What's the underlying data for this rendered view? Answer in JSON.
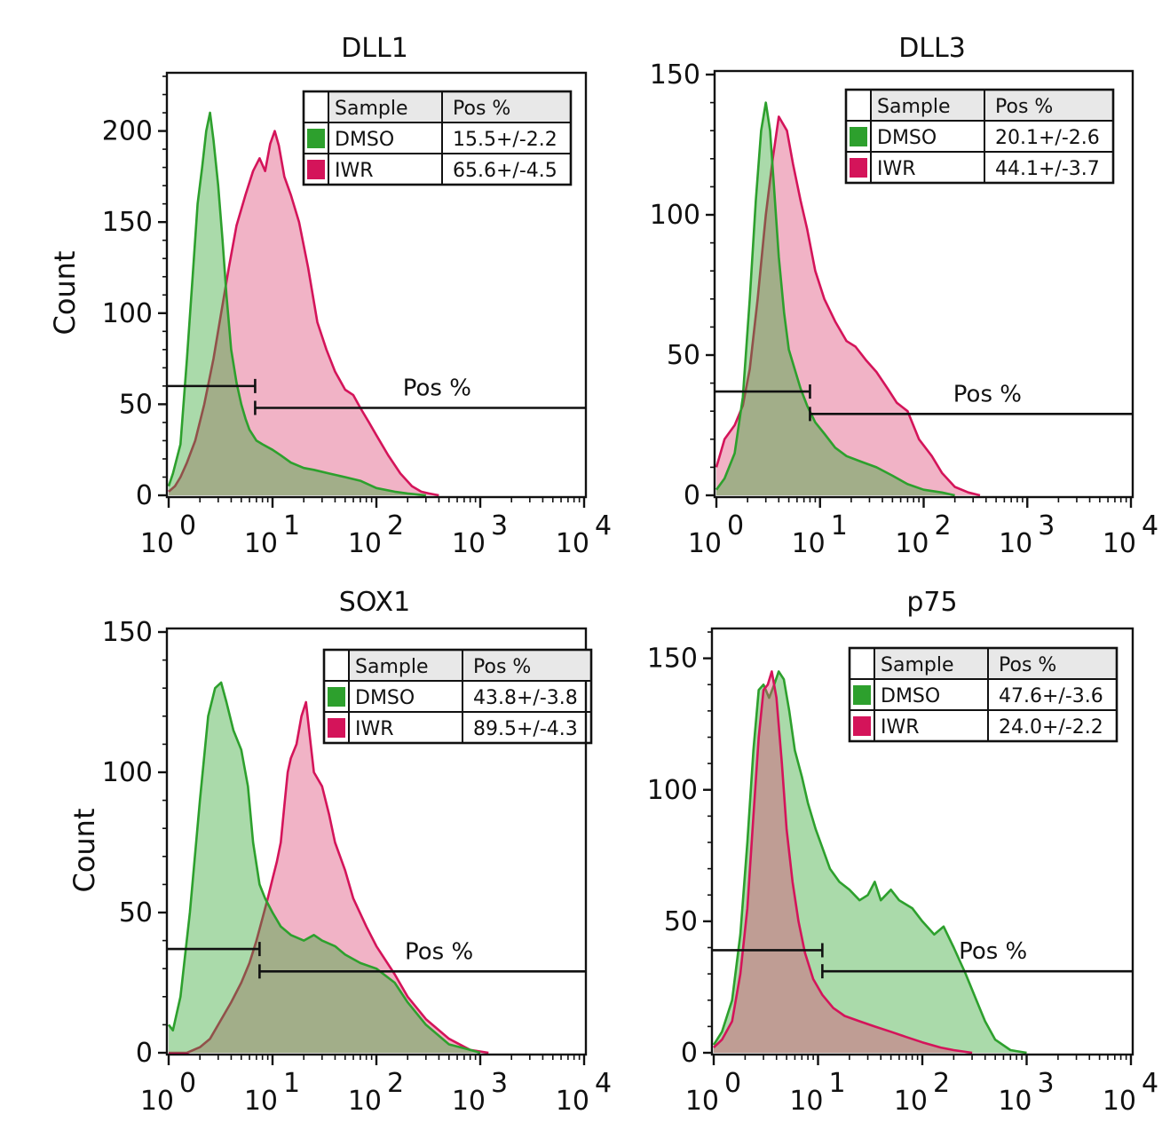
{
  "colors": {
    "dmso": "#2da02d",
    "iwr": "#d4145a",
    "dmso_fill": "#35a835",
    "iwr_fill": "#dd4a78"
  },
  "legend_headers": {
    "sample": "Sample",
    "pos": "Pos %"
  },
  "chart_data": [
    {
      "type": "area",
      "title": "DLL1",
      "xscale": "log",
      "xlim": [
        1,
        10000
      ],
      "ylim": [
        0,
        230
      ],
      "ylabel": "Count",
      "yticks": [
        "0",
        "50",
        "100",
        "150",
        "200"
      ],
      "ytick_values": [
        0,
        50,
        100,
        150,
        200
      ],
      "xtick_base": [
        "10",
        "10",
        "10",
        "10",
        "10"
      ],
      "xtick_exp": [
        "0",
        "1",
        "2",
        "3",
        "4"
      ],
      "gate": {
        "label": "Pos %",
        "threshold": 6.8,
        "neg_count": 60,
        "pos_count": 48
      },
      "legend": [
        {
          "sample": "DMSO",
          "pos": "15.5+/-2.2",
          "color_key": "dmso"
        },
        {
          "sample": "IWR",
          "pos": "65.6+/-4.5",
          "color_key": "iwr"
        }
      ],
      "series": [
        {
          "name": "IWR",
          "color_key": "iwr",
          "x": [
            1,
            1.15,
            1.3,
            1.5,
            1.8,
            2.2,
            2.7,
            3.2,
            3.8,
            4.5,
            5.5,
            6.5,
            7.5,
            8.5,
            9.5,
            10.5,
            11.5,
            13,
            15,
            18,
            22,
            27,
            33,
            40,
            50,
            60,
            70,
            85,
            100,
            130,
            170,
            220,
            270,
            320,
            400
          ],
          "values": [
            2,
            5,
            10,
            18,
            30,
            50,
            75,
            100,
            125,
            148,
            165,
            178,
            185,
            178,
            193,
            200,
            192,
            175,
            165,
            150,
            125,
            95,
            80,
            68,
            58,
            55,
            48,
            40,
            33,
            22,
            12,
            5,
            2,
            1,
            0
          ]
        },
        {
          "name": "DMSO",
          "color_key": "dmso",
          "x": [
            1,
            1.1,
            1.3,
            1.5,
            1.7,
            1.9,
            2.1,
            2.3,
            2.5,
            2.7,
            3.0,
            3.3,
            3.6,
            4.0,
            4.5,
            5.0,
            5.5,
            6.0,
            7.0,
            8.0,
            10,
            12,
            15,
            20,
            25,
            35,
            50,
            70,
            100,
            150,
            200,
            300
          ],
          "values": [
            5,
            12,
            28,
            75,
            120,
            160,
            180,
            200,
            210,
            195,
            170,
            140,
            110,
            80,
            62,
            50,
            42,
            36,
            30,
            28,
            25,
            22,
            18,
            15,
            14,
            12,
            10,
            8,
            4,
            2,
            1,
            0
          ]
        }
      ]
    },
    {
      "type": "area",
      "title": "DLL3",
      "xscale": "log",
      "xlim": [
        1,
        10000
      ],
      "ylim": [
        0,
        150
      ],
      "ylabel": "",
      "yticks": [
        "0",
        "50",
        "100",
        "150"
      ],
      "ytick_values": [
        0,
        50,
        100,
        150
      ],
      "xtick_base": [
        "10",
        "10",
        "10",
        "10",
        "10"
      ],
      "xtick_exp": [
        "0",
        "1",
        "2",
        "3",
        "4"
      ],
      "gate": {
        "label": "Pos %",
        "threshold": 8,
        "neg_count": 37,
        "pos_count": 29
      },
      "legend": [
        {
          "sample": "DMSO",
          "pos": "20.1+/-2.6",
          "color_key": "dmso"
        },
        {
          "sample": "IWR",
          "pos": "44.1+/-3.7",
          "color_key": "iwr"
        }
      ],
      "series": [
        {
          "name": "IWR",
          "color_key": "iwr",
          "x": [
            1,
            1.2,
            1.5,
            1.8,
            2.1,
            2.5,
            3.0,
            3.5,
            4.0,
            4.8,
            5.5,
            6.5,
            7.5,
            9,
            11,
            14,
            18,
            22,
            28,
            35,
            45,
            55,
            70,
            90,
            120,
            150,
            200,
            270,
            350
          ],
          "values": [
            10,
            20,
            25,
            32,
            45,
            70,
            100,
            120,
            135,
            130,
            118,
            105,
            95,
            80,
            70,
            62,
            55,
            53,
            48,
            44,
            38,
            33,
            30,
            20,
            14,
            8,
            3,
            1,
            0
          ]
        },
        {
          "name": "DMSO",
          "color_key": "dmso",
          "x": [
            1,
            1.2,
            1.5,
            1.8,
            2.1,
            2.4,
            2.7,
            3.0,
            3.3,
            3.6,
            4.0,
            4.5,
            5.0,
            5.7,
            6.5,
            7.5,
            9,
            11,
            14,
            18,
            25,
            35,
            50,
            70,
            100,
            150,
            200
          ],
          "values": [
            2,
            6,
            15,
            35,
            70,
            105,
            130,
            140,
            130,
            110,
            85,
            65,
            52,
            45,
            38,
            32,
            26,
            22,
            17,
            14,
            12,
            10,
            7,
            4,
            2,
            1,
            0
          ]
        }
      ]
    },
    {
      "type": "area",
      "title": "SOX1",
      "xscale": "log",
      "xlim": [
        1,
        10000
      ],
      "ylim": [
        0,
        150
      ],
      "ylabel": "Count",
      "yticks": [
        "0",
        "50",
        "100",
        "150"
      ],
      "ytick_values": [
        0,
        50,
        100,
        150
      ],
      "xtick_base": [
        "10",
        "10",
        "10",
        "10",
        "10"
      ],
      "xtick_exp": [
        "0",
        "1",
        "2",
        "3",
        "4"
      ],
      "gate": {
        "label": "Pos %",
        "threshold": 7.5,
        "neg_count": 37,
        "pos_count": 29
      },
      "legend": [
        {
          "sample": "DMSO",
          "pos": "43.8+/-3.8",
          "color_key": "dmso"
        },
        {
          "sample": "IWR",
          "pos": "89.5+/-4.3",
          "color_key": "iwr"
        }
      ],
      "series": [
        {
          "name": "IWR",
          "color_key": "iwr",
          "x": [
            1,
            1.5,
            2.0,
            2.5,
            3.0,
            4.0,
            5.0,
            6.0,
            7.0,
            8.0,
            9.0,
            10,
            11,
            12,
            13,
            14,
            15,
            17,
            19,
            21,
            23,
            25,
            30,
            35,
            40,
            50,
            60,
            80,
            100,
            150,
            200,
            300,
            500,
            800,
            1200
          ],
          "values": [
            0,
            0,
            2,
            5,
            10,
            18,
            25,
            32,
            40,
            48,
            55,
            62,
            68,
            75,
            88,
            100,
            105,
            110,
            120,
            125,
            112,
            100,
            95,
            85,
            75,
            65,
            55,
            45,
            38,
            28,
            20,
            12,
            5,
            1,
            0
          ]
        },
        {
          "name": "DMSO",
          "color_key": "dmso",
          "x": [
            1,
            1.1,
            1.3,
            1.6,
            2.0,
            2.4,
            2.8,
            3.2,
            3.6,
            4.2,
            5.0,
            5.8,
            6.5,
            7.5,
            8.5,
            10,
            12,
            15,
            20,
            25,
            30,
            40,
            50,
            70,
            100,
            150,
            200,
            300,
            500,
            800,
            1000
          ],
          "values": [
            10,
            8,
            20,
            50,
            90,
            120,
            130,
            132,
            125,
            115,
            108,
            95,
            75,
            60,
            55,
            50,
            45,
            42,
            40,
            42,
            40,
            38,
            35,
            32,
            30,
            25,
            18,
            10,
            3,
            1,
            0
          ]
        }
      ]
    },
    {
      "type": "area",
      "title": "p75",
      "xscale": "log",
      "xlim": [
        1,
        10000
      ],
      "ylim": [
        0,
        160
      ],
      "ylabel": "",
      "yticks": [
        "0",
        "50",
        "100",
        "150"
      ],
      "ytick_values": [
        0,
        50,
        100,
        150
      ],
      "xtick_base": [
        "10",
        "10",
        "10",
        "10",
        "10"
      ],
      "xtick_exp": [
        "0",
        "1",
        "2",
        "3",
        "4"
      ],
      "gate": {
        "label": "Pos %",
        "threshold": 11,
        "neg_count": 39,
        "pos_count": 31
      },
      "legend": [
        {
          "sample": "DMSO",
          "pos": "47.6+/-3.6",
          "color_key": "dmso"
        },
        {
          "sample": "IWR",
          "pos": "24.0+/-2.2",
          "color_key": "iwr"
        }
      ],
      "series": [
        {
          "name": "DMSO",
          "color_key": "dmso",
          "x": [
            1,
            1.2,
            1.5,
            1.8,
            2.1,
            2.4,
            2.7,
            3.0,
            3.4,
            3.8,
            4.2,
            4.7,
            5.3,
            6.0,
            7.0,
            8.0,
            9.5,
            11,
            13,
            16,
            20,
            25,
            30,
            35,
            40,
            50,
            60,
            80,
            100,
            130,
            160,
            200,
            260,
            330,
            400,
            500,
            700,
            1000
          ],
          "values": [
            3,
            8,
            20,
            45,
            80,
            115,
            138,
            140,
            135,
            140,
            145,
            142,
            130,
            115,
            105,
            95,
            85,
            78,
            70,
            65,
            62,
            58,
            60,
            65,
            58,
            62,
            58,
            55,
            50,
            45,
            48,
            40,
            30,
            20,
            12,
            5,
            1,
            0
          ]
        },
        {
          "name": "IWR",
          "color_key": "iwr",
          "x": [
            1,
            1.2,
            1.5,
            1.8,
            2.1,
            2.4,
            2.7,
            3.0,
            3.3,
            3.6,
            4.0,
            4.5,
            5.0,
            5.7,
            6.5,
            7.5,
            9,
            11,
            14,
            18,
            25,
            35,
            50,
            70,
            100,
            150,
            200,
            300
          ],
          "values": [
            2,
            5,
            12,
            30,
            55,
            90,
            120,
            138,
            140,
            145,
            135,
            110,
            85,
            65,
            50,
            38,
            28,
            22,
            17,
            14,
            12,
            10,
            8,
            6,
            4,
            2,
            1,
            0
          ]
        }
      ]
    }
  ]
}
